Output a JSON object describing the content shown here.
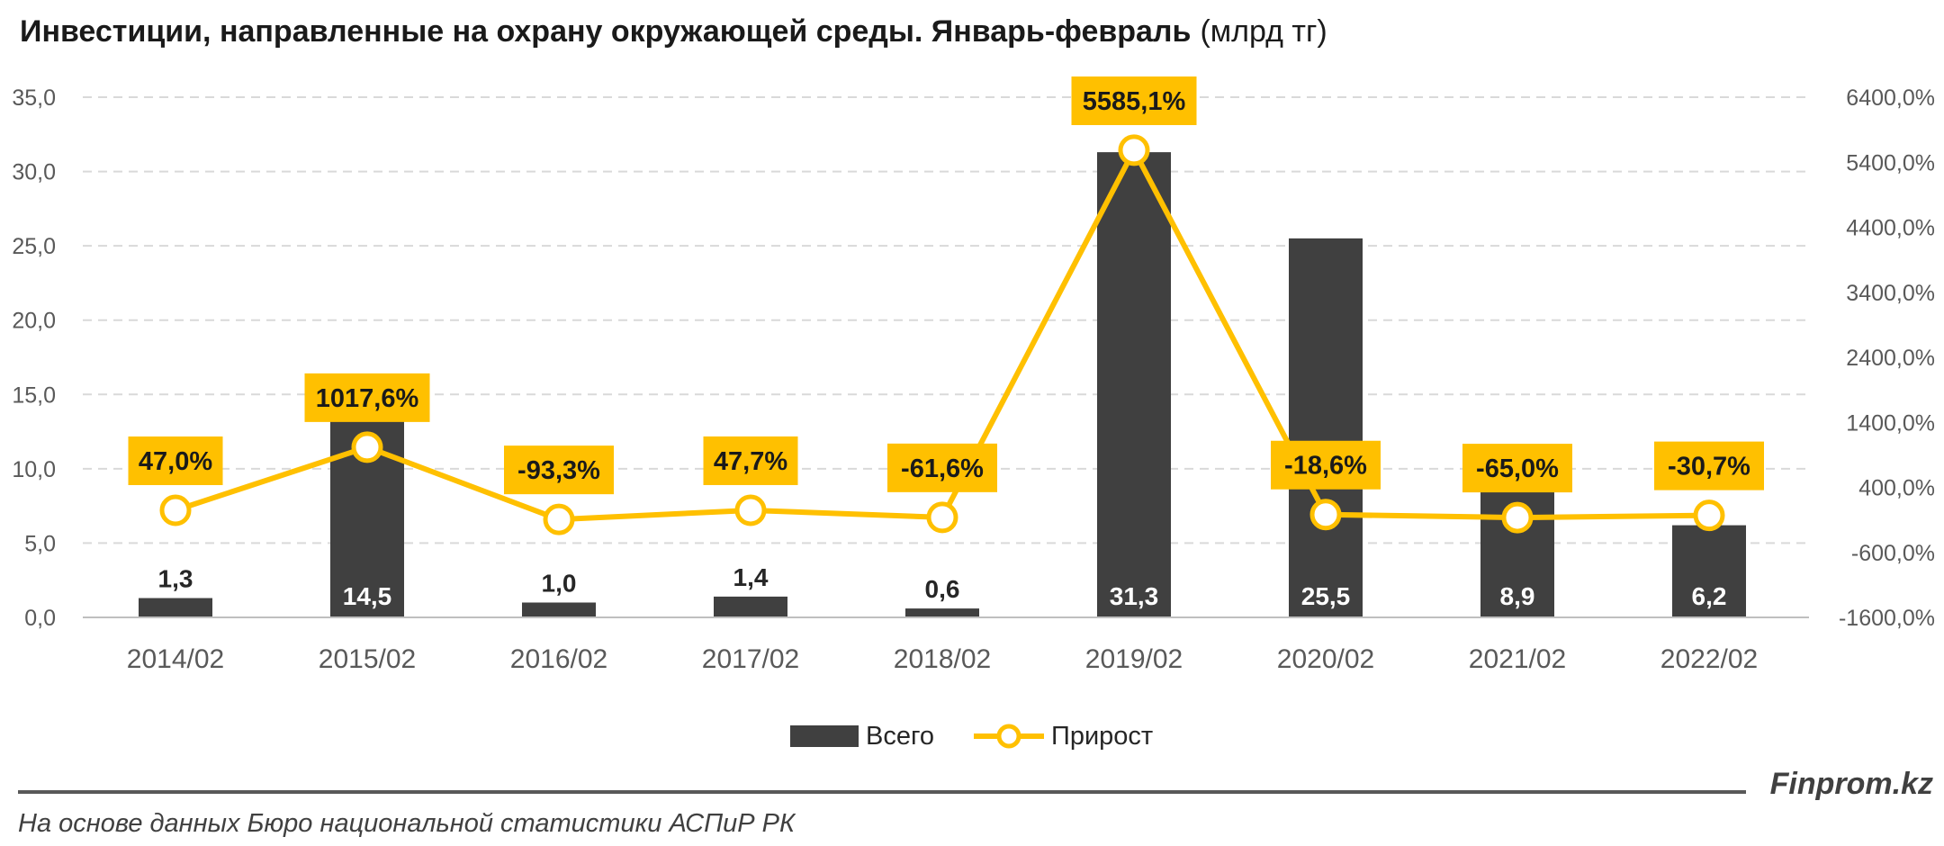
{
  "chart_data": {
    "type": "bar",
    "title": "Инвестиции, направленные на охрану окружающей среды. Январь-февраль",
    "title_unit": "(млрд тг)",
    "categories": [
      "2014/02",
      "2015/02",
      "2016/02",
      "2017/02",
      "2018/02",
      "2019/02",
      "2020/02",
      "2021/02",
      "2022/02"
    ],
    "series": [
      {
        "name": "Всего",
        "type": "bar",
        "axis": "left",
        "color": "#404040",
        "values": [
          1.3,
          14.5,
          1.0,
          1.4,
          0.6,
          31.3,
          25.5,
          8.9,
          6.2
        ],
        "labels": [
          "1,3",
          "14,5",
          "1,0",
          "1,4",
          "0,6",
          "31,3",
          "25,5",
          "8,9",
          "6,2"
        ]
      },
      {
        "name": "Прирост",
        "type": "line",
        "axis": "right",
        "color": "#FFC000",
        "values": [
          47.0,
          1017.6,
          -93.3,
          47.7,
          -61.6,
          5585.1,
          -18.6,
          -65.0,
          -30.7
        ],
        "labels": [
          "47,0%",
          "1017,6%",
          "-93,3%",
          "47,7%",
          "-61,6%",
          "5585,1%",
          "-18,6%",
          "-65,0%",
          "-30,7%"
        ]
      }
    ],
    "y_left": {
      "min": 0,
      "max": 35,
      "ticks": [
        0,
        5,
        10,
        15,
        20,
        25,
        30,
        35
      ],
      "tick_labels": [
        "0,0",
        "5,0",
        "10,0",
        "15,0",
        "20,0",
        "25,0",
        "30,0",
        "35,0"
      ]
    },
    "y_right": {
      "min": -1600,
      "max": 6400,
      "ticks": [
        -1600,
        -600,
        400,
        1400,
        2400,
        3400,
        4400,
        5400,
        6400
      ],
      "tick_labels": [
        "-1600,0%",
        "-600,0%",
        "400,0%",
        "1400,0%",
        "2400,0%",
        "3400,0%",
        "4400,0%",
        "5400,0%",
        "6400,0%"
      ]
    },
    "grid": true,
    "legend": "bottom-center"
  },
  "footer": {
    "brand": "Finprom.kz",
    "source": "На основе данных Бюро национальной статистики АСПиР РК"
  }
}
